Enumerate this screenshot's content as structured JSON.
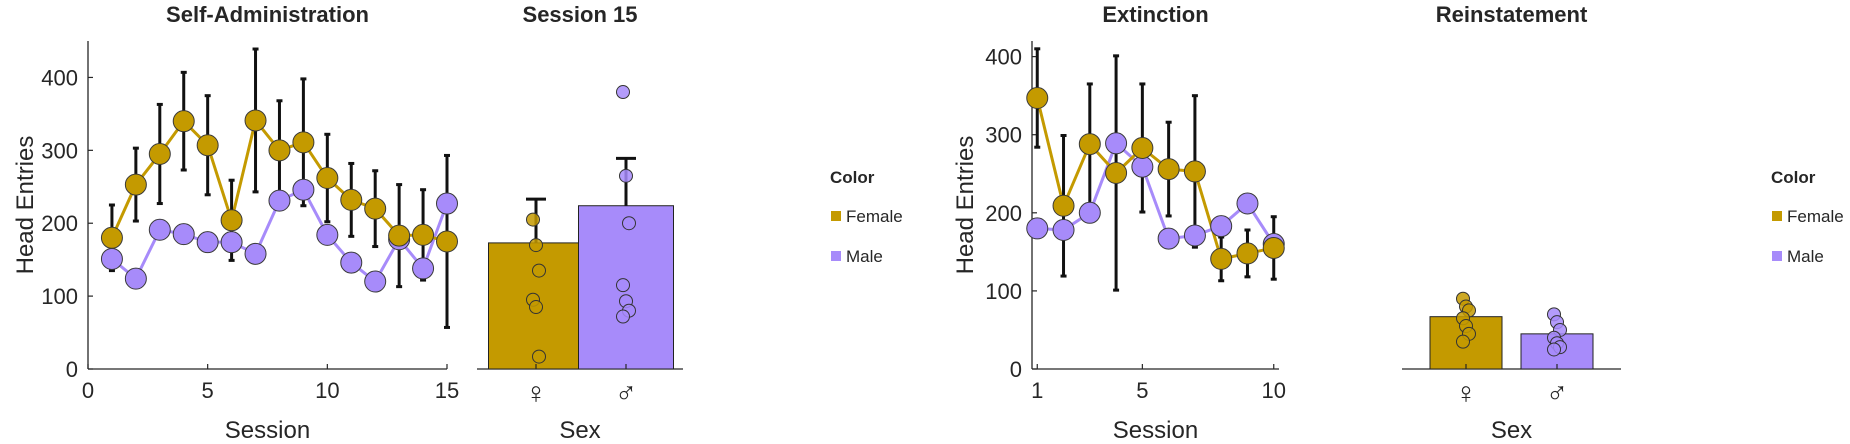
{
  "colors": {
    "female": "#C49A00",
    "male": "#A78BFA",
    "axis": "#262626",
    "errorbar": "#111111"
  },
  "legend": {
    "title": "Color",
    "items": [
      {
        "label": "Female",
        "color": "#C49A00"
      },
      {
        "label": "Male",
        "color": "#A78BFA"
      }
    ]
  },
  "chart_data": [
    {
      "id": "self_admin",
      "type": "line",
      "title": "Self-Administration",
      "xlabel": "Session",
      "ylabel": "Head Entries",
      "xlim": [
        0,
        15
      ],
      "ylim": [
        0,
        450
      ],
      "xticks": [
        0,
        5,
        10,
        15
      ],
      "yticks": [
        0,
        100,
        200,
        300,
        400
      ],
      "series": [
        {
          "name": "Female",
          "x": [
            1,
            2,
            3,
            4,
            5,
            6,
            7,
            8,
            9,
            10,
            11,
            12,
            13,
            14,
            15
          ],
          "values": [
            180,
            253,
            295,
            340,
            307,
            204,
            341,
            300,
            311,
            262,
            232,
            220,
            183,
            184,
            175
          ],
          "errors": [
            45,
            50,
            68,
            67,
            68,
            55,
            98,
            68,
            87,
            60,
            50,
            52,
            70,
            62,
            118
          ]
        },
        {
          "name": "Male",
          "x": [
            1,
            2,
            3,
            4,
            5,
            6,
            7,
            8,
            9,
            10,
            11,
            12,
            13,
            14,
            15
          ],
          "values": [
            151,
            124,
            191,
            185,
            174,
            174,
            158,
            231,
            246,
            184,
            146,
            120,
            178,
            138,
            227
          ]
        }
      ],
      "show_errors": [
        "Female"
      ]
    },
    {
      "id": "session15",
      "type": "bar",
      "title": "Session 15",
      "xlabel": "Sex",
      "ylim": [
        0,
        450
      ],
      "categories": [
        "♀",
        "♂"
      ],
      "values": [
        173,
        224
      ],
      "errors": [
        60,
        65
      ],
      "points": [
        [
          205,
          170,
          135,
          95,
          85,
          17
        ],
        [
          380,
          265,
          200,
          115,
          93,
          80,
          72
        ]
      ]
    },
    {
      "id": "extinction",
      "type": "line",
      "title": "Extinction",
      "xlabel": "Session",
      "ylabel": "Head Entries",
      "xlim": [
        0.8,
        10.2
      ],
      "ylim": [
        0,
        420
      ],
      "xticks": [
        1,
        5,
        10
      ],
      "yticks": [
        0,
        100,
        200,
        300,
        400
      ],
      "series": [
        {
          "name": "Female",
          "x": [
            1,
            2,
            3,
            4,
            5,
            6,
            7,
            8,
            9,
            10
          ],
          "values": [
            347,
            209,
            288,
            251,
            283,
            256,
            253,
            141,
            148,
            155
          ],
          "errors": [
            63,
            90,
            77,
            150,
            82,
            60,
            97,
            28,
            30,
            40
          ]
        },
        {
          "name": "Male",
          "x": [
            1,
            2,
            3,
            4,
            5,
            6,
            7,
            8,
            9,
            10
          ],
          "values": [
            180,
            178,
            200,
            289,
            259,
            167,
            171,
            183,
            212,
            160
          ]
        }
      ],
      "show_errors": [
        "Female"
      ]
    },
    {
      "id": "reinstatement",
      "type": "bar",
      "title": "Reinstatement",
      "xlabel": "Sex",
      "ylim": [
        0,
        420
      ],
      "categories": [
        "♀",
        "♂"
      ],
      "values": [
        67,
        45
      ],
      "errors": [
        0,
        0
      ],
      "points": [
        [
          90,
          80,
          75,
          65,
          55,
          45,
          35
        ],
        [
          70,
          60,
          50,
          40,
          33,
          28,
          25
        ]
      ]
    }
  ]
}
